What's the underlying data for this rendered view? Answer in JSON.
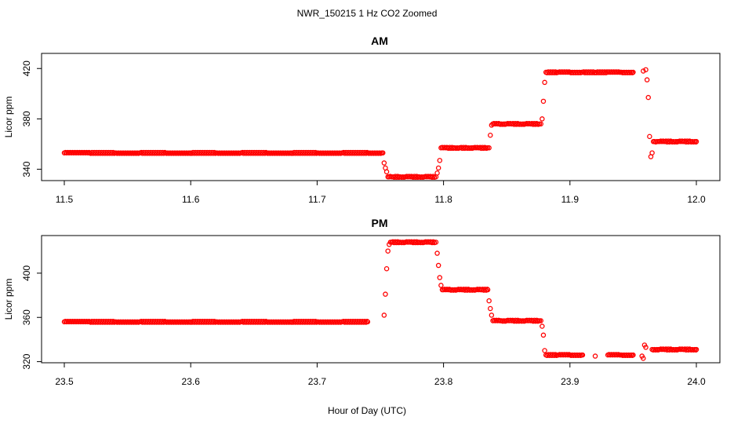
{
  "figure": {
    "title": "NWR_150215  1 Hz CO2 Zoomed",
    "xlabel": "Hour of Day (UTC)"
  },
  "colors": {
    "points": "#ff0000",
    "axes": "#000000"
  },
  "chart_data": [
    {
      "type": "scatter",
      "title": "AM",
      "xlabel": "",
      "ylabel": "Licor ppm",
      "xlim": [
        11.5,
        12.0
      ],
      "ylim": [
        331,
        432
      ],
      "xticks": [
        11.5,
        11.6,
        11.7,
        11.8,
        11.9,
        12.0
      ],
      "xtick_labels": [
        "11.5",
        "11.6",
        "11.7",
        "11.8",
        "11.9",
        "12.0"
      ],
      "yticks": [
        340,
        380,
        420
      ],
      "ytick_labels": [
        "340",
        "380",
        "420"
      ],
      "grid": false,
      "legend": "none",
      "series": [
        {
          "marker": "open-circle",
          "x": [
            11.5,
            11.52,
            11.54,
            11.56,
            11.58,
            11.6,
            11.62,
            11.64,
            11.66,
            11.68,
            11.7,
            11.72,
            11.74,
            11.752,
            11.753,
            11.754,
            11.755,
            11.756,
            11.76,
            11.765,
            11.77,
            11.775,
            11.78,
            11.785,
            11.79,
            11.794,
            11.795,
            11.796,
            11.797,
            11.798,
            11.803,
            11.808,
            11.813,
            11.818,
            11.823,
            11.828,
            11.833,
            11.836,
            11.837,
            11.838,
            11.839,
            11.844,
            11.849,
            11.854,
            11.859,
            11.864,
            11.869,
            11.874,
            11.877,
            11.878,
            11.879,
            11.88,
            11.881,
            11.89,
            11.9,
            11.91,
            11.92,
            11.93,
            11.94,
            11.95,
            11.958,
            11.96,
            11.961,
            11.962,
            11.963,
            11.964,
            11.965,
            11.966,
            11.97,
            11.975,
            11.98,
            11.985,
            11.99,
            11.995,
            12.0
          ],
          "y": [
            353,
            353,
            353,
            353,
            353,
            353,
            353,
            353,
            353,
            353,
            353,
            353,
            353,
            353,
            345,
            341,
            338,
            334,
            334,
            334,
            334,
            334,
            334,
            334,
            334,
            334,
            337,
            341,
            347,
            357,
            357,
            357,
            357,
            357,
            357,
            357,
            357,
            357,
            367,
            375,
            376,
            376,
            376,
            376,
            376,
            376,
            376,
            376,
            376,
            380,
            394,
            409,
            417,
            417,
            417,
            417,
            417,
            417,
            417,
            417,
            418,
            419,
            411,
            397,
            366,
            350,
            353,
            362,
            362,
            362,
            362,
            362,
            362,
            362,
            362
          ]
        }
      ]
    },
    {
      "type": "scatter",
      "title": "PM",
      "xlabel": "Hour of Day (UTC)",
      "ylabel": "Licor ppm",
      "xlim": [
        23.5,
        24.0
      ],
      "ylim": [
        319,
        434
      ],
      "xticks": [
        23.5,
        23.6,
        23.7,
        23.8,
        23.9,
        24.0
      ],
      "xtick_labels": [
        "23.5",
        "23.6",
        "23.7",
        "23.8",
        "23.9",
        "24.0"
      ],
      "yticks": [
        320,
        360,
        400
      ],
      "ytick_labels": [
        "320",
        "360",
        "400"
      ],
      "grid": false,
      "legend": "none",
      "series": [
        {
          "marker": "open-circle",
          "x": [
            23.5,
            23.52,
            23.54,
            23.56,
            23.58,
            23.6,
            23.62,
            23.64,
            23.66,
            23.68,
            23.7,
            23.72,
            23.74,
            23.753,
            23.754,
            23.755,
            23.756,
            23.757,
            23.758,
            23.759,
            23.765,
            23.77,
            23.775,
            23.78,
            23.785,
            23.79,
            23.794,
            23.795,
            23.796,
            23.797,
            23.798,
            23.799,
            23.805,
            23.81,
            23.815,
            23.82,
            23.825,
            23.83,
            23.835,
            23.836,
            23.837,
            23.838,
            23.839,
            23.845,
            23.85,
            23.855,
            23.86,
            23.865,
            23.87,
            23.875,
            23.877,
            23.878,
            23.879,
            23.88,
            23.881,
            23.89,
            23.9,
            23.91,
            23.92,
            23.93,
            23.94,
            23.95,
            23.957,
            23.958,
            23.959,
            23.96,
            23.965,
            23.97,
            23.975,
            23.98,
            23.985,
            23.99,
            23.995,
            24.0
          ],
          "y": [
            356,
            356,
            356,
            356,
            356,
            356,
            356,
            356,
            356,
            356,
            356,
            356,
            356,
            362,
            381,
            404,
            420,
            426,
            428,
            428,
            428,
            428,
            428,
            428,
            428,
            428,
            428,
            418,
            407,
            396,
            389,
            385,
            385,
            385,
            385,
            385,
            385,
            385,
            385,
            375,
            368,
            362,
            357,
            357,
            357,
            357,
            357,
            357,
            357,
            357,
            357,
            352,
            344,
            330,
            326,
            326,
            326,
            326,
            325,
            326,
            326,
            326,
            325,
            323,
            335,
            333,
            331,
            331,
            331,
            331,
            331,
            331,
            331,
            331
          ]
        }
      ]
    }
  ]
}
